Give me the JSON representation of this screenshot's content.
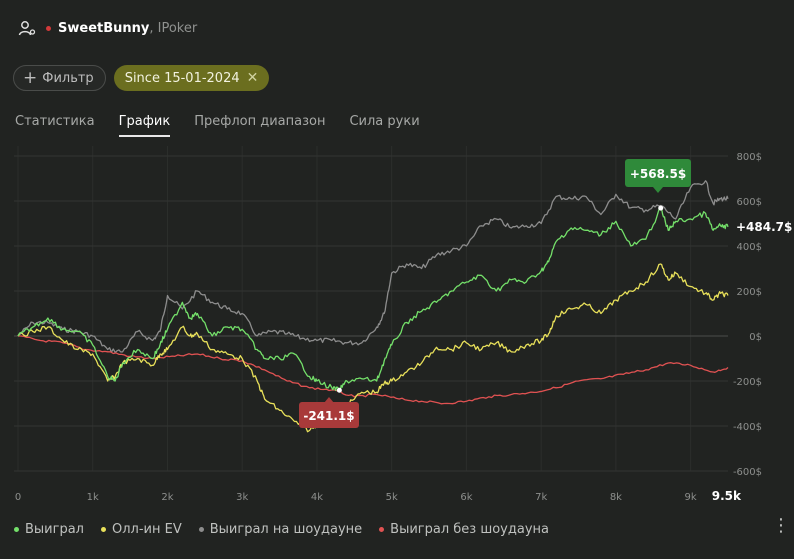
{
  "header": {
    "player": "SweetBunny",
    "room": ", IPoker"
  },
  "filters": {
    "add_label": "Фильтр",
    "date_label": "Since 15-01-2024"
  },
  "tabs": [
    {
      "label": "Статистика",
      "active": false
    },
    {
      "label": "График",
      "active": true
    },
    {
      "label": "Префлоп диапазон",
      "active": false
    },
    {
      "label": "Сила руки",
      "active": false
    }
  ],
  "chart_data": {
    "type": "line",
    "title": "",
    "xlabel": "",
    "ylabel": "",
    "xlim": [
      0,
      9500
    ],
    "ylim": [
      -600,
      800
    ],
    "grid": true,
    "x_ticks": [
      "0",
      "1k",
      "2k",
      "3k",
      "4k",
      "5k",
      "6k",
      "7k",
      "8k",
      "9k"
    ],
    "x_end_label": "9.5k",
    "y_ticks": [
      "800$",
      "600$",
      "400$",
      "200$",
      "0$",
      "-200$",
      "-400$",
      "-600$"
    ],
    "current_value_label": "+484.7$",
    "max_label": "+568.5$",
    "min_label": "-241.1$",
    "series": [
      {
        "name": "Выиграл",
        "color": "#74e06a",
        "x": [
          0,
          200,
          400,
          600,
          800,
          1000,
          1200,
          1300,
          1400,
          1600,
          1800,
          1900,
          2000,
          2200,
          2300,
          2400,
          2600,
          2800,
          3000,
          3200,
          3300,
          3500,
          3700,
          3900,
          4000,
          4200,
          4300,
          4400,
          4600,
          4800,
          4900,
          5000,
          5200,
          5400,
          5600,
          5800,
          6000,
          6200,
          6400,
          6600,
          6800,
          7000,
          7100,
          7200,
          7400,
          7600,
          7800,
          8000,
          8200,
          8400,
          8600,
          8700,
          8800,
          9000,
          9200,
          9300,
          9400,
          9500
        ],
        "y": [
          0,
          40,
          80,
          30,
          20,
          -40,
          -180,
          -200,
          -120,
          -60,
          -100,
          -40,
          30,
          150,
          80,
          100,
          0,
          40,
          30,
          -60,
          -100,
          -100,
          -80,
          -180,
          -200,
          -230,
          -241,
          -200,
          -190,
          -200,
          -110,
          -40,
          60,
          110,
          150,
          200,
          240,
          270,
          200,
          250,
          240,
          290,
          330,
          420,
          480,
          470,
          450,
          510,
          400,
          430,
          568,
          470,
          510,
          520,
          545,
          470,
          490,
          485
        ]
      },
      {
        "name": "Олл-ин EV",
        "color": "#e8e05a",
        "x": [
          0,
          200,
          400,
          600,
          800,
          1000,
          1200,
          1300,
          1400,
          1600,
          1800,
          1900,
          2000,
          2200,
          2300,
          2400,
          2600,
          2800,
          3000,
          3200,
          3300,
          3500,
          3700,
          3900,
          4000,
          4200,
          4300,
          4400,
          4600,
          4800,
          4900,
          5000,
          5200,
          5400,
          5600,
          5800,
          6000,
          6200,
          6400,
          6600,
          6800,
          7000,
          7100,
          7200,
          7400,
          7600,
          7800,
          8000,
          8200,
          8400,
          8600,
          8700,
          8800,
          9000,
          9200,
          9300,
          9400,
          9500
        ],
        "y": [
          0,
          20,
          40,
          -20,
          -60,
          -80,
          -200,
          -180,
          -120,
          -100,
          -130,
          -80,
          -60,
          40,
          0,
          10,
          -60,
          -80,
          -100,
          -200,
          -280,
          -330,
          -380,
          -420,
          -390,
          -380,
          -370,
          -310,
          -250,
          -250,
          -210,
          -200,
          -160,
          -120,
          -50,
          -60,
          -30,
          -60,
          -30,
          -70,
          -40,
          -20,
          10,
          90,
          120,
          140,
          100,
          160,
          200,
          240,
          320,
          250,
          280,
          220,
          190,
          160,
          190,
          180
        ]
      },
      {
        "name": "Выиграл на шоудауне",
        "color": "#8d8d8d",
        "x": [
          0,
          200,
          400,
          600,
          800,
          1000,
          1200,
          1400,
          1600,
          1800,
          1900,
          2000,
          2200,
          2400,
          2600,
          2800,
          3000,
          3200,
          3400,
          3600,
          3800,
          4000,
          4200,
          4400,
          4600,
          4800,
          4900,
          5000,
          5200,
          5400,
          5600,
          5800,
          6000,
          6200,
          6400,
          6600,
          6800,
          7000,
          7200,
          7400,
          7600,
          7800,
          8000,
          8200,
          8400,
          8600,
          8800,
          9000,
          9200,
          9300,
          9400,
          9500
        ],
        "y": [
          0,
          60,
          60,
          30,
          20,
          0,
          -60,
          -70,
          20,
          -20,
          20,
          180,
          120,
          200,
          150,
          120,
          100,
          0,
          20,
          10,
          -10,
          -20,
          -20,
          -30,
          -30,
          40,
          100,
          280,
          320,
          300,
          360,
          380,
          400,
          490,
          520,
          480,
          490,
          500,
          620,
          610,
          620,
          540,
          630,
          570,
          560,
          580,
          520,
          660,
          690,
          590,
          610,
          610
        ]
      },
      {
        "name": "Выиграл без шоудауна",
        "color": "#e05252",
        "x": [
          0,
          300,
          600,
          900,
          1200,
          1500,
          1800,
          2100,
          2400,
          2700,
          3000,
          3300,
          3600,
          3900,
          4200,
          4500,
          4800,
          5100,
          5400,
          5700,
          6000,
          6300,
          6600,
          6900,
          7200,
          7500,
          7800,
          8100,
          8400,
          8700,
          9000,
          9300,
          9500
        ],
        "y": [
          0,
          -20,
          -30,
          -60,
          -70,
          -90,
          -100,
          -90,
          -80,
          -100,
          -110,
          -150,
          -200,
          -230,
          -240,
          -270,
          -260,
          -280,
          -290,
          -300,
          -290,
          -270,
          -260,
          -250,
          -230,
          -200,
          -190,
          -170,
          -150,
          -120,
          -130,
          -160,
          -140
        ]
      }
    ]
  },
  "icons": {
    "user": "user-settings-icon",
    "more": "more-vertical-icon",
    "close": "close-icon",
    "plus": "plus-icon"
  }
}
